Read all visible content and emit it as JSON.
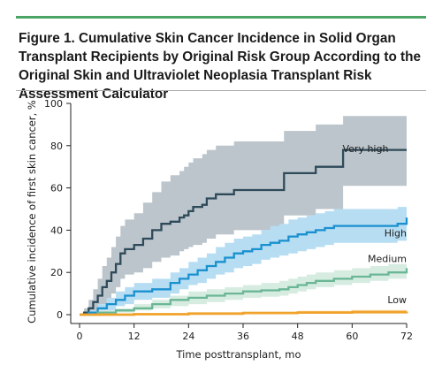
{
  "figure": {
    "title": "Figure 1. Cumulative Skin Cancer Incidence in Solid Organ Transplant Recipients by Original Risk Group According to the Original Skin and Ultraviolet Neoplasia Transplant Risk Assessment Calculator",
    "accent_color": "#4aa564"
  },
  "chart_data": {
    "type": "line",
    "title": "Figure 1. Cumulative Skin Cancer Incidence in Solid Organ Transplant Recipients by Original Risk Group According to the Original Skin and Ultraviolet Neoplasia Transplant Risk Assessment Calculator",
    "xlabel": "Time posttransplant, mo",
    "ylabel": "Cumulative incidence of first skin cancer, %",
    "xlim": [
      0,
      72
    ],
    "ylim": [
      0,
      100
    ],
    "xticks": [
      0,
      12,
      24,
      36,
      48,
      60,
      72
    ],
    "yticks": [
      0,
      20,
      40,
      60,
      80,
      100
    ],
    "grid": false,
    "step": true,
    "series": [
      {
        "name": "Very high",
        "color": "#2e4a5a",
        "band_color": "#bcc5cb",
        "points": [
          [
            0,
            0
          ],
          [
            1,
            1
          ],
          [
            2,
            3
          ],
          [
            3,
            6
          ],
          [
            4,
            9
          ],
          [
            5,
            13
          ],
          [
            6,
            16
          ],
          [
            7,
            20
          ],
          [
            8,
            24
          ],
          [
            9,
            29
          ],
          [
            10,
            31
          ],
          [
            12,
            33
          ],
          [
            14,
            36
          ],
          [
            16,
            40
          ],
          [
            18,
            43
          ],
          [
            20,
            44
          ],
          [
            22,
            46
          ],
          [
            23,
            47
          ],
          [
            24,
            49
          ],
          [
            25,
            51
          ],
          [
            27,
            52
          ],
          [
            28,
            55
          ],
          [
            30,
            57
          ],
          [
            34,
            59
          ],
          [
            45,
            67
          ],
          [
            52,
            70
          ],
          [
            58,
            78
          ],
          [
            72,
            78
          ]
        ],
        "upper": [
          [
            0,
            0
          ],
          [
            1,
            3
          ],
          [
            2,
            7
          ],
          [
            3,
            12
          ],
          [
            4,
            17
          ],
          [
            5,
            23
          ],
          [
            6,
            27
          ],
          [
            7,
            32
          ],
          [
            8,
            37
          ],
          [
            9,
            42
          ],
          [
            10,
            45
          ],
          [
            12,
            48
          ],
          [
            14,
            53
          ],
          [
            16,
            58
          ],
          [
            18,
            63
          ],
          [
            20,
            66
          ],
          [
            22,
            68
          ],
          [
            23,
            70
          ],
          [
            24,
            72
          ],
          [
            25,
            74
          ],
          [
            27,
            76
          ],
          [
            28,
            78
          ],
          [
            30,
            80
          ],
          [
            34,
            82
          ],
          [
            45,
            87
          ],
          [
            52,
            90
          ],
          [
            58,
            94
          ],
          [
            72,
            94
          ]
        ],
        "lower": [
          [
            0,
            0
          ],
          [
            1,
            0
          ],
          [
            2,
            0
          ],
          [
            3,
            1
          ],
          [
            4,
            3
          ],
          [
            5,
            5
          ],
          [
            6,
            7
          ],
          [
            7,
            10
          ],
          [
            8,
            13
          ],
          [
            9,
            17
          ],
          [
            10,
            19
          ],
          [
            12,
            20
          ],
          [
            14,
            22
          ],
          [
            16,
            25
          ],
          [
            18,
            27
          ],
          [
            20,
            28
          ],
          [
            22,
            30
          ],
          [
            23,
            31
          ],
          [
            24,
            32
          ],
          [
            25,
            33
          ],
          [
            27,
            34
          ],
          [
            28,
            36
          ],
          [
            30,
            38
          ],
          [
            34,
            40
          ],
          [
            45,
            47
          ],
          [
            52,
            50
          ],
          [
            58,
            61
          ],
          [
            72,
            61
          ]
        ],
        "label": "Very high"
      },
      {
        "name": "High",
        "color": "#1a91cf",
        "band_color": "#b7ddf3",
        "points": [
          [
            0,
            0
          ],
          [
            2,
            1
          ],
          [
            4,
            3
          ],
          [
            6,
            5
          ],
          [
            8,
            7
          ],
          [
            10,
            9
          ],
          [
            12,
            11
          ],
          [
            16,
            12
          ],
          [
            20,
            15
          ],
          [
            22,
            17
          ],
          [
            24,
            19
          ],
          [
            26,
            21
          ],
          [
            28,
            23
          ],
          [
            30,
            25
          ],
          [
            32,
            27
          ],
          [
            34,
            29
          ],
          [
            36,
            30
          ],
          [
            38,
            31
          ],
          [
            40,
            33
          ],
          [
            42,
            34
          ],
          [
            44,
            35
          ],
          [
            46,
            37
          ],
          [
            48,
            38
          ],
          [
            50,
            39
          ],
          [
            52,
            40
          ],
          [
            54,
            41
          ],
          [
            56,
            42
          ],
          [
            60,
            42
          ],
          [
            66,
            42
          ],
          [
            70,
            43
          ],
          [
            72,
            46
          ]
        ],
        "upper": [
          [
            0,
            0
          ],
          [
            2,
            2
          ],
          [
            4,
            5
          ],
          [
            6,
            8
          ],
          [
            8,
            11
          ],
          [
            10,
            13
          ],
          [
            12,
            15
          ],
          [
            16,
            17
          ],
          [
            20,
            20
          ],
          [
            22,
            22
          ],
          [
            24,
            25
          ],
          [
            26,
            27
          ],
          [
            28,
            29
          ],
          [
            30,
            32
          ],
          [
            32,
            34
          ],
          [
            34,
            36
          ],
          [
            36,
            37
          ],
          [
            38,
            38
          ],
          [
            40,
            40
          ],
          [
            42,
            42
          ],
          [
            44,
            43
          ],
          [
            46,
            45
          ],
          [
            48,
            46
          ],
          [
            50,
            47
          ],
          [
            52,
            48
          ],
          [
            54,
            49
          ],
          [
            56,
            50
          ],
          [
            60,
            50
          ],
          [
            66,
            50
          ],
          [
            70,
            51
          ],
          [
            72,
            53
          ]
        ],
        "lower": [
          [
            0,
            0
          ],
          [
            2,
            0
          ],
          [
            4,
            1
          ],
          [
            6,
            2
          ],
          [
            8,
            4
          ],
          [
            10,
            5
          ],
          [
            12,
            7
          ],
          [
            16,
            8
          ],
          [
            20,
            10
          ],
          [
            22,
            12
          ],
          [
            24,
            14
          ],
          [
            26,
            15
          ],
          [
            28,
            17
          ],
          [
            30,
            19
          ],
          [
            32,
            20
          ],
          [
            34,
            22
          ],
          [
            36,
            23
          ],
          [
            38,
            24
          ],
          [
            40,
            26
          ],
          [
            42,
            27
          ],
          [
            44,
            28
          ],
          [
            46,
            29
          ],
          [
            48,
            30
          ],
          [
            50,
            31
          ],
          [
            52,
            32
          ],
          [
            54,
            33
          ],
          [
            56,
            34
          ],
          [
            60,
            34
          ],
          [
            66,
            34
          ],
          [
            70,
            35
          ],
          [
            72,
            38
          ]
        ],
        "label": "High"
      },
      {
        "name": "Medium",
        "color": "#6ab695",
        "band_color": "#d7ece1",
        "points": [
          [
            0,
            0
          ],
          [
            4,
            1
          ],
          [
            8,
            2
          ],
          [
            12,
            3
          ],
          [
            16,
            5
          ],
          [
            20,
            7
          ],
          [
            24,
            8
          ],
          [
            28,
            9
          ],
          [
            32,
            10
          ],
          [
            36,
            11
          ],
          [
            40,
            11.5
          ],
          [
            44,
            12
          ],
          [
            46,
            13
          ],
          [
            48,
            14
          ],
          [
            50,
            15
          ],
          [
            52,
            16
          ],
          [
            56,
            17
          ],
          [
            60,
            18
          ],
          [
            64,
            19
          ],
          [
            68,
            20
          ],
          [
            72,
            22
          ]
        ],
        "upper": [
          [
            0,
            0
          ],
          [
            4,
            2
          ],
          [
            8,
            3
          ],
          [
            12,
            5
          ],
          [
            16,
            7
          ],
          [
            20,
            9
          ],
          [
            24,
            11
          ],
          [
            28,
            12
          ],
          [
            32,
            13
          ],
          [
            36,
            14
          ],
          [
            40,
            15
          ],
          [
            44,
            16
          ],
          [
            46,
            17
          ],
          [
            48,
            18
          ],
          [
            50,
            19
          ],
          [
            52,
            20
          ],
          [
            56,
            21
          ],
          [
            60,
            22
          ],
          [
            64,
            23
          ],
          [
            68,
            24
          ],
          [
            72,
            25
          ]
        ],
        "lower": [
          [
            0,
            0
          ],
          [
            4,
            0
          ],
          [
            8,
            1
          ],
          [
            12,
            2
          ],
          [
            16,
            3
          ],
          [
            20,
            4
          ],
          [
            24,
            5
          ],
          [
            28,
            6
          ],
          [
            32,
            7
          ],
          [
            36,
            8
          ],
          [
            40,
            8.5
          ],
          [
            44,
            9
          ],
          [
            46,
            10
          ],
          [
            48,
            11
          ],
          [
            50,
            12
          ],
          [
            52,
            13
          ],
          [
            56,
            14
          ],
          [
            60,
            15
          ],
          [
            64,
            16
          ],
          [
            68,
            17
          ],
          [
            72,
            19
          ]
        ],
        "label": "Medium"
      },
      {
        "name": "Low",
        "color": "#f0a32c",
        "band_color": "#fad6a3",
        "points": [
          [
            0,
            0
          ],
          [
            12,
            0.2
          ],
          [
            24,
            0.5
          ],
          [
            36,
            0.8
          ],
          [
            48,
            1
          ],
          [
            60,
            1.2
          ],
          [
            72,
            1.5
          ]
        ],
        "upper": [
          [
            0,
            0.5
          ],
          [
            12,
            0.7
          ],
          [
            24,
            1
          ],
          [
            36,
            1.4
          ],
          [
            48,
            1.8
          ],
          [
            60,
            2.2
          ],
          [
            72,
            2.6
          ]
        ],
        "lower": [
          [
            0,
            0
          ],
          [
            12,
            0
          ],
          [
            24,
            0
          ],
          [
            36,
            0.3
          ],
          [
            48,
            0.4
          ],
          [
            60,
            0.5
          ],
          [
            72,
            0.7
          ]
        ],
        "label": "Low"
      }
    ]
  }
}
